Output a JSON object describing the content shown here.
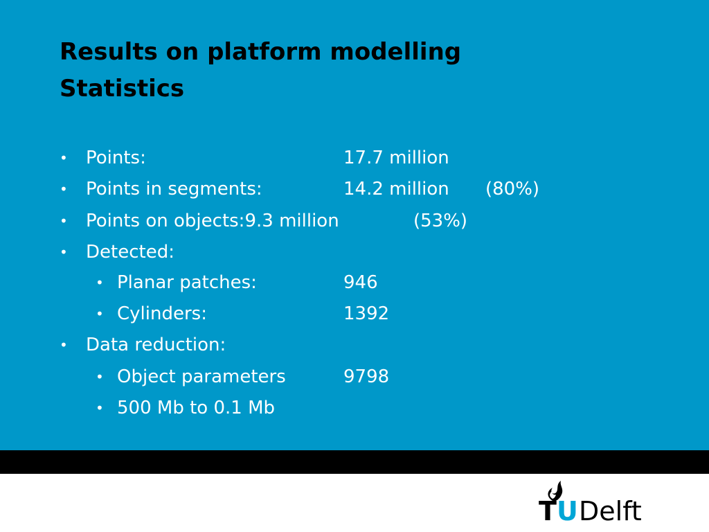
{
  "title": {
    "lines": [
      "Results on platform modelling",
      "Statistics"
    ]
  },
  "bullets": [
    {
      "label": "Points:",
      "value": "17.7 million"
    },
    {
      "label": "Points in segments:",
      "value": "14.2 million",
      "note": "(80%)"
    },
    {
      "label": "Points on objects:",
      "value": "9.3 million",
      "note": "(53%)"
    },
    {
      "label": "Detected:"
    },
    {
      "label": "Planar patches:",
      "value": "946"
    },
    {
      "label": "Cylinders:",
      "value": "1392"
    },
    {
      "label": "Data reduction:"
    },
    {
      "label": "Object parameters",
      "value": "9798"
    },
    {
      "label": "500 Mb to 0.1 Mb"
    }
  ],
  "logo": {
    "t": "T",
    "u": "U",
    "delft": "Delft"
  }
}
